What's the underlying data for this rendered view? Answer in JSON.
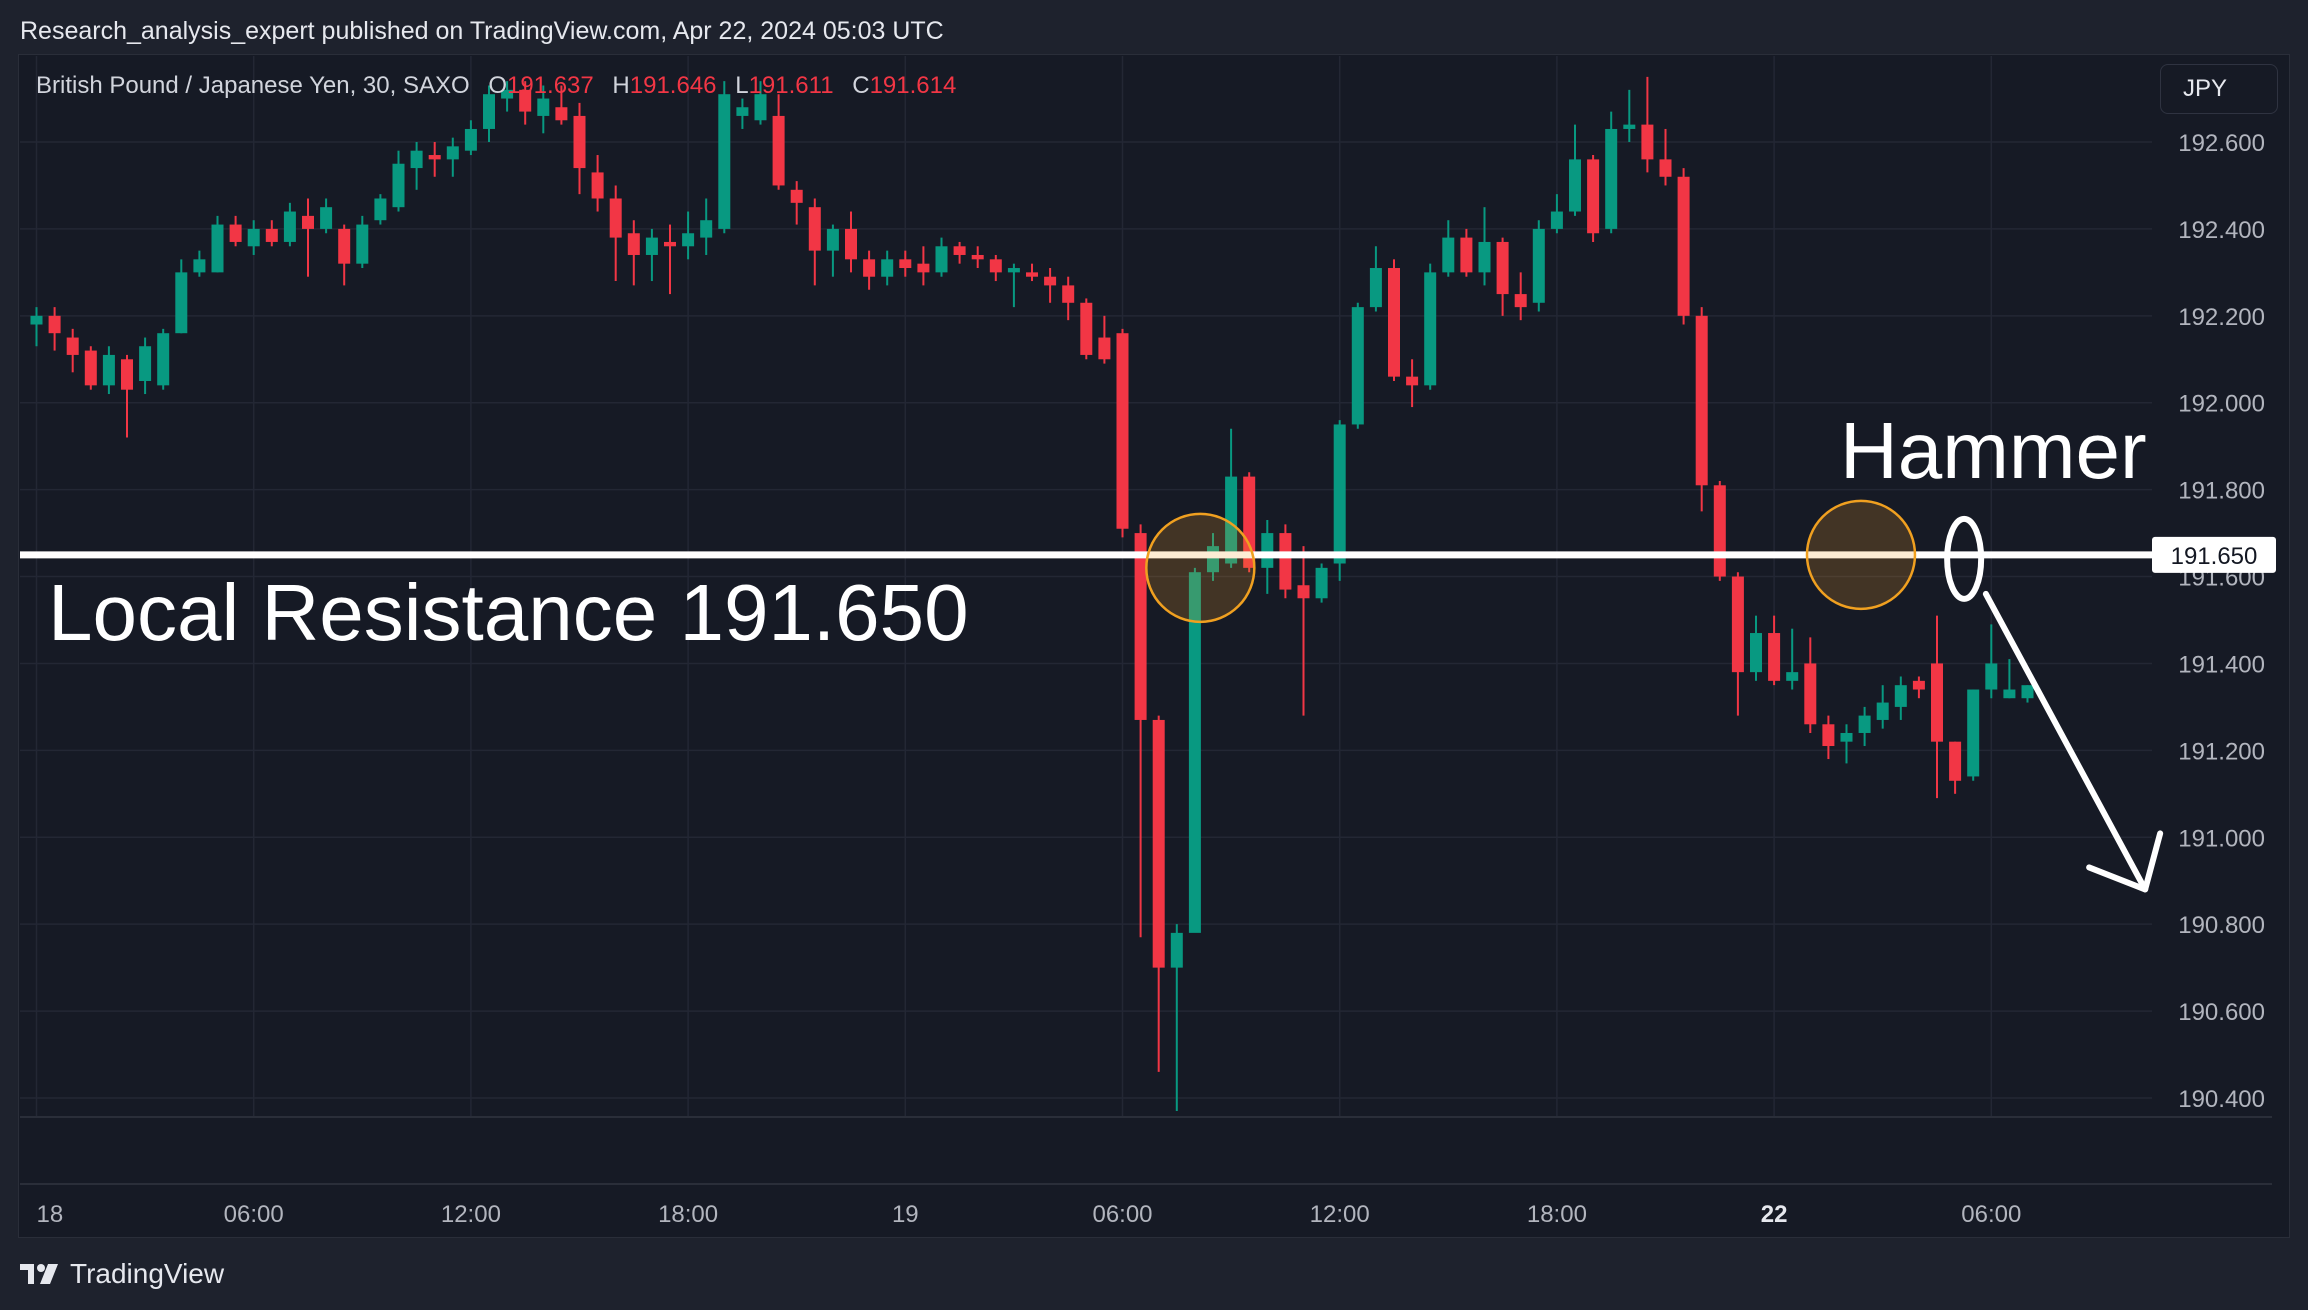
{
  "header": {
    "published_text": "Research_analysis_expert published on TradingView.com, Apr 22, 2024 05:03 UTC"
  },
  "legend": {
    "symbol": "British Pound / Japanese Yen, 30, SAXO",
    "o_label": "O",
    "o_value": "191.637",
    "h_label": "H",
    "h_value": "191.646",
    "l_label": "L",
    "l_value": "191.611",
    "c_label": "C",
    "c_value": "191.614"
  },
  "currency_button": {
    "label": "JPY"
  },
  "footer": {
    "brand": "TradingView",
    "logo_icon": "tradingview-logo-icon"
  },
  "colors": {
    "up": "#089981",
    "down": "#f23645",
    "background": "#161a25",
    "grid": "#232734"
  },
  "chart_data": {
    "type": "candlestick",
    "y_axis": {
      "ticks": [
        "192.600",
        "192.400",
        "192.200",
        "192.000",
        "191.800",
        "191.600",
        "191.400",
        "191.200",
        "191.000",
        "190.800",
        "190.600",
        "190.400"
      ],
      "range": [
        190.36,
        192.88
      ]
    },
    "x_axis": {
      "ticks": [
        {
          "label": "18",
          "slot": 0
        },
        {
          "label": "06:00",
          "slot": 12
        },
        {
          "label": "12:00",
          "slot": 24
        },
        {
          "label": "18:00",
          "slot": 36
        },
        {
          "label": "19",
          "slot": 48
        },
        {
          "label": "06:00",
          "slot": 60
        },
        {
          "label": "12:00",
          "slot": 72
        },
        {
          "label": "18:00",
          "slot": 84
        },
        {
          "label": "22",
          "slot": 96,
          "bold": true
        },
        {
          "label": "06:00",
          "slot": 108
        }
      ]
    },
    "price_label": "191.650",
    "annotations": {
      "resistance_label": "Local Resistance 191.650",
      "resistance_level": 191.65,
      "hammer_label": "Hammer",
      "circles": [
        191.62,
        191.65
      ],
      "arrow_from": 191.56,
      "arrow_to": 190.88
    },
    "candles": [
      [
        192.18,
        192.2,
        192.22,
        192.13
      ],
      [
        192.2,
        192.16,
        192.22,
        192.12
      ],
      [
        192.15,
        192.11,
        192.17,
        192.07
      ],
      [
        192.12,
        192.04,
        192.13,
        192.03
      ],
      [
        192.04,
        192.11,
        192.13,
        192.02
      ],
      [
        192.1,
        192.03,
        192.11,
        191.92
      ],
      [
        192.05,
        192.13,
        192.15,
        192.02
      ],
      [
        192.04,
        192.16,
        192.17,
        192.03
      ],
      [
        192.16,
        192.3,
        192.33,
        192.16
      ],
      [
        192.3,
        192.33,
        192.35,
        192.29
      ],
      [
        192.3,
        192.41,
        192.43,
        192.3
      ],
      [
        192.41,
        192.37,
        192.43,
        192.36
      ],
      [
        192.36,
        192.4,
        192.42,
        192.34
      ],
      [
        192.4,
        192.37,
        192.42,
        192.36
      ],
      [
        192.37,
        192.44,
        192.46,
        192.36
      ],
      [
        192.43,
        192.4,
        192.47,
        192.29
      ],
      [
        192.4,
        192.45,
        192.47,
        192.39
      ],
      [
        192.4,
        192.32,
        192.41,
        192.27
      ],
      [
        192.32,
        192.41,
        192.43,
        192.31
      ],
      [
        192.42,
        192.47,
        192.48,
        192.41
      ],
      [
        192.45,
        192.55,
        192.58,
        192.44
      ],
      [
        192.54,
        192.58,
        192.6,
        192.49
      ],
      [
        192.57,
        192.56,
        192.6,
        192.52
      ],
      [
        192.56,
        192.59,
        192.61,
        192.52
      ],
      [
        192.58,
        192.63,
        192.65,
        192.57
      ],
      [
        192.63,
        192.71,
        192.73,
        192.6
      ],
      [
        192.7,
        192.72,
        192.74,
        192.67
      ],
      [
        192.72,
        192.67,
        192.74,
        192.64
      ],
      [
        192.66,
        192.7,
        192.73,
        192.62
      ],
      [
        192.68,
        192.65,
        192.73,
        192.64
      ],
      [
        192.66,
        192.54,
        192.69,
        192.48
      ],
      [
        192.53,
        192.47,
        192.57,
        192.44
      ],
      [
        192.47,
        192.38,
        192.5,
        192.28
      ],
      [
        192.39,
        192.34,
        192.42,
        192.27
      ],
      [
        192.34,
        192.38,
        192.4,
        192.28
      ],
      [
        192.37,
        192.36,
        192.41,
        192.25
      ],
      [
        192.36,
        192.39,
        192.44,
        192.33
      ],
      [
        192.38,
        192.42,
        192.47,
        192.34
      ],
      [
        192.4,
        192.71,
        192.74,
        192.39
      ],
      [
        192.66,
        192.68,
        192.7,
        192.63
      ],
      [
        192.65,
        192.71,
        192.74,
        192.64
      ],
      [
        192.66,
        192.5,
        192.71,
        192.49
      ],
      [
        192.49,
        192.46,
        192.51,
        192.41
      ],
      [
        192.45,
        192.35,
        192.47,
        192.27
      ],
      [
        192.35,
        192.4,
        192.41,
        192.29
      ],
      [
        192.4,
        192.33,
        192.44,
        192.3
      ],
      [
        192.33,
        192.29,
        192.35,
        192.26
      ],
      [
        192.29,
        192.33,
        192.35,
        192.27
      ],
      [
        192.33,
        192.31,
        192.35,
        192.29
      ],
      [
        192.32,
        192.3,
        192.36,
        192.27
      ],
      [
        192.3,
        192.36,
        192.38,
        192.29
      ],
      [
        192.36,
        192.34,
        192.37,
        192.32
      ],
      [
        192.34,
        192.33,
        192.36,
        192.31
      ],
      [
        192.33,
        192.3,
        192.34,
        192.28
      ],
      [
        192.3,
        192.31,
        192.32,
        192.22
      ],
      [
        192.3,
        192.29,
        192.32,
        192.28
      ],
      [
        192.29,
        192.27,
        192.31,
        192.23
      ],
      [
        192.27,
        192.23,
        192.29,
        192.19
      ],
      [
        192.23,
        192.11,
        192.24,
        192.1
      ],
      [
        192.15,
        192.1,
        192.2,
        192.09
      ],
      [
        192.16,
        191.71,
        192.17,
        191.69
      ],
      [
        191.7,
        191.27,
        191.72,
        190.77
      ],
      [
        191.27,
        190.7,
        191.28,
        190.46
      ],
      [
        190.7,
        190.78,
        190.8,
        190.37
      ],
      [
        190.78,
        191.61,
        191.62,
        190.79
      ],
      [
        191.61,
        191.67,
        191.7,
        191.59
      ],
      [
        191.63,
        191.83,
        191.94,
        191.62
      ],
      [
        191.83,
        191.62,
        191.84,
        191.61
      ],
      [
        191.62,
        191.7,
        191.73,
        191.56
      ],
      [
        191.7,
        191.57,
        191.72,
        191.55
      ],
      [
        191.58,
        191.55,
        191.67,
        191.28
      ],
      [
        191.55,
        191.62,
        191.63,
        191.54
      ],
      [
        191.63,
        191.95,
        191.96,
        191.59
      ],
      [
        191.95,
        192.22,
        192.23,
        191.94
      ],
      [
        192.22,
        192.31,
        192.36,
        192.21
      ],
      [
        192.31,
        192.06,
        192.33,
        192.05
      ],
      [
        192.06,
        192.04,
        192.1,
        191.99
      ],
      [
        192.04,
        192.3,
        192.32,
        192.03
      ],
      [
        192.3,
        192.38,
        192.42,
        192.29
      ],
      [
        192.38,
        192.3,
        192.4,
        192.29
      ],
      [
        192.3,
        192.37,
        192.45,
        192.27
      ],
      [
        192.37,
        192.25,
        192.38,
        192.2
      ],
      [
        192.25,
        192.22,
        192.3,
        192.19
      ],
      [
        192.23,
        192.4,
        192.42,
        192.21
      ],
      [
        192.4,
        192.44,
        192.48,
        192.39
      ],
      [
        192.44,
        192.56,
        192.64,
        192.43
      ],
      [
        192.56,
        192.39,
        192.57,
        192.37
      ],
      [
        192.4,
        192.63,
        192.67,
        192.39
      ],
      [
        192.63,
        192.64,
        192.72,
        192.6
      ],
      [
        192.64,
        192.56,
        192.75,
        192.53
      ],
      [
        192.56,
        192.52,
        192.63,
        192.5
      ],
      [
        192.52,
        192.2,
        192.54,
        192.18
      ],
      [
        192.2,
        191.81,
        192.22,
        191.75
      ],
      [
        191.81,
        191.6,
        191.82,
        191.59
      ],
      [
        191.6,
        191.38,
        191.61,
        191.28
      ],
      [
        191.38,
        191.47,
        191.51,
        191.36
      ],
      [
        191.47,
        191.36,
        191.51,
        191.35
      ],
      [
        191.36,
        191.38,
        191.48,
        191.34
      ],
      [
        191.4,
        191.26,
        191.46,
        191.24
      ],
      [
        191.26,
        191.21,
        191.28,
        191.18
      ],
      [
        191.22,
        191.24,
        191.26,
        191.17
      ],
      [
        191.24,
        191.28,
        191.3,
        191.21
      ],
      [
        191.27,
        191.31,
        191.35,
        191.25
      ],
      [
        191.3,
        191.35,
        191.37,
        191.27
      ],
      [
        191.36,
        191.34,
        191.37,
        191.32
      ],
      [
        191.4,
        191.22,
        191.51,
        191.09
      ],
      [
        191.22,
        191.13,
        191.22,
        191.1
      ],
      [
        191.14,
        191.34,
        191.34,
        191.13
      ],
      [
        191.34,
        191.4,
        191.49,
        191.32
      ],
      [
        191.32,
        191.34,
        191.41,
        191.32
      ],
      [
        191.32,
        191.35,
        191.35,
        191.31
      ]
    ]
  }
}
